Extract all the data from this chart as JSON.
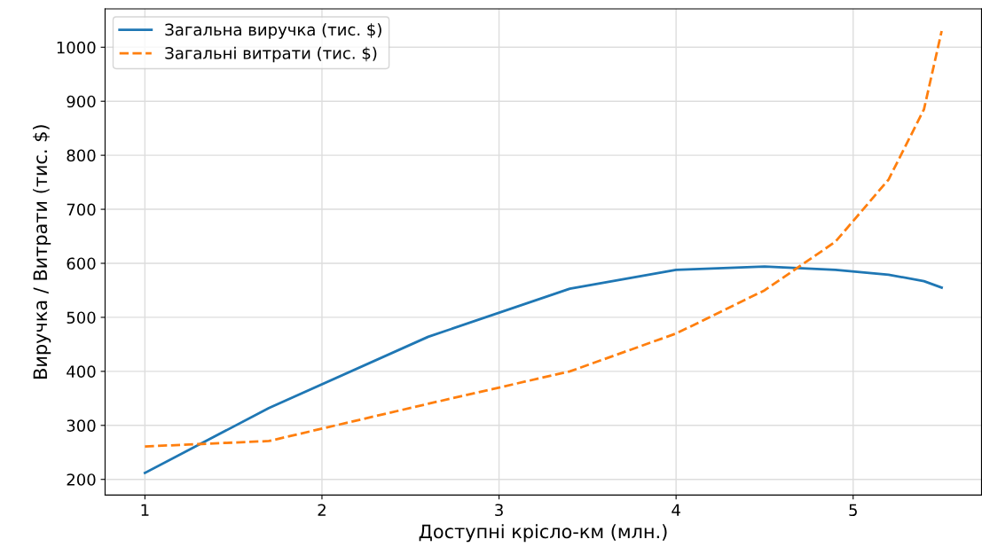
{
  "chart_data": {
    "type": "line",
    "xlabel": "Доступні крісло-км (млн.)",
    "ylabel": "Виручка / Витрати (тис. $)",
    "x": [
      1,
      1.7,
      2.6,
      3.4,
      4,
      4.5,
      4.9,
      5.2,
      5.4,
      5.5
    ],
    "series": [
      {
        "name": "Загальна виручка (тис. $)",
        "color": "#1f77b4",
        "line_style": "solid",
        "values": [
          212,
          332,
          464,
          553,
          588,
          594,
          588,
          579,
          567,
          555
        ]
      },
      {
        "name": "Загальні витрати (тис. $)",
        "color": "#ff7f0e",
        "line_style": "dashed",
        "values": [
          261,
          271,
          340,
          400,
          470,
          550,
          640,
          755,
          885,
          1030
        ]
      }
    ],
    "xlim": [
      0.775,
      5.725
    ],
    "ylim": [
      171,
      1071
    ],
    "xticks": [
      1,
      2,
      3,
      4,
      5
    ],
    "yticks": [
      200,
      300,
      400,
      500,
      600,
      700,
      800,
      900,
      1000
    ],
    "grid": true,
    "legend": "top left",
    "marker": "none"
  }
}
